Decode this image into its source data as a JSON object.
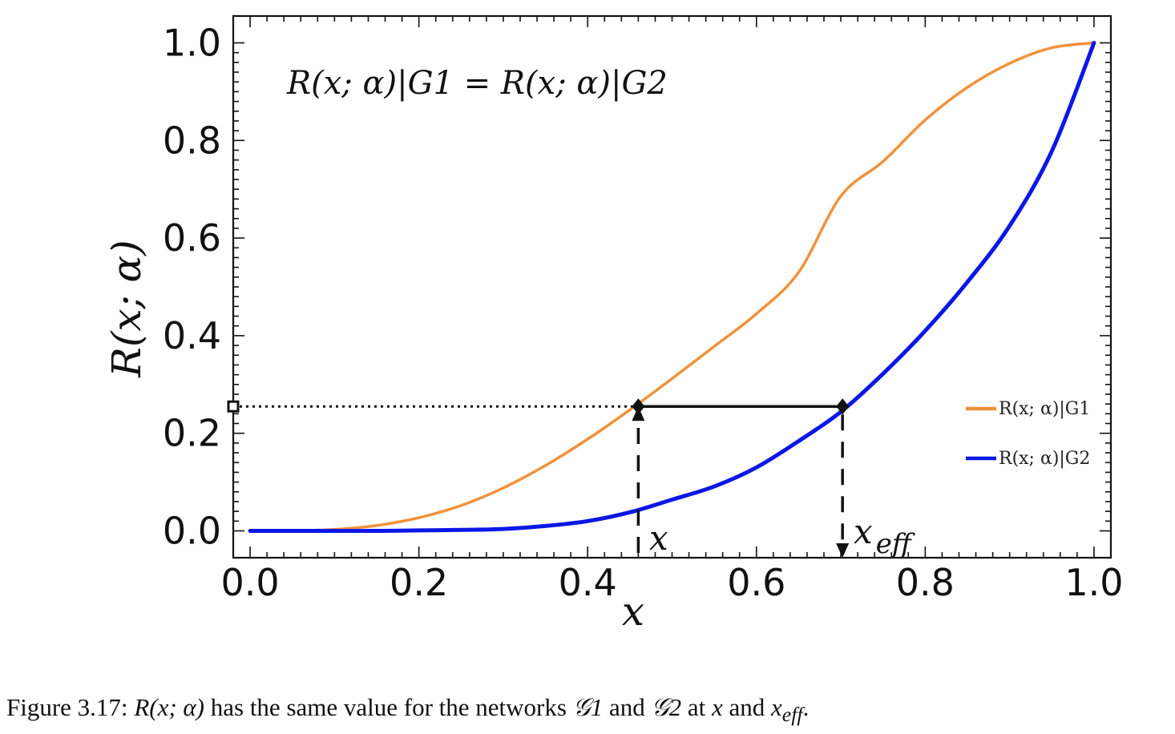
{
  "chart_data": {
    "type": "line",
    "title": "",
    "xlabel": "x",
    "ylabel": "R(x; α)",
    "xlim": [
      -0.02,
      1.02
    ],
    "ylim": [
      -0.055,
      1.055
    ],
    "xticks": [
      0.0,
      0.2,
      0.4,
      0.6,
      0.8,
      1.0
    ],
    "xtick_labels": [
      "0.0",
      "0.2",
      "0.4",
      "0.6",
      "0.8",
      "1.0"
    ],
    "yticks": [
      0.0,
      0.2,
      0.4,
      0.6,
      0.8,
      1.0
    ],
    "ytick_labels": [
      "0.0",
      "0.2",
      "0.4",
      "0.6",
      "0.8",
      "1.0"
    ],
    "grid": false,
    "frame": true,
    "annotation": "R(x; α)|G1 = R(x; α)|G2",
    "legend_position": "right",
    "series": [
      {
        "name": "R(x; α)|G1",
        "color": "#F0923B",
        "x": [
          0.0,
          0.05,
          0.1,
          0.15,
          0.2,
          0.25,
          0.3,
          0.35,
          0.4,
          0.45,
          0.5,
          0.55,
          0.6,
          0.65,
          0.7,
          0.75,
          0.8,
          0.85,
          0.9,
          0.95,
          1.0
        ],
        "y": [
          0.0,
          0.0,
          0.003,
          0.011,
          0.027,
          0.052,
          0.088,
          0.134,
          0.188,
          0.248,
          0.312,
          0.378,
          0.445,
          0.53,
          0.686,
          0.757,
          0.842,
          0.909,
          0.958,
          0.99,
          1.0
        ]
      },
      {
        "name": "R(x; α)|G2",
        "color": "#0A17E6",
        "x": [
          0.0,
          0.05,
          0.1,
          0.15,
          0.2,
          0.25,
          0.3,
          0.35,
          0.4,
          0.45,
          0.5,
          0.55,
          0.6,
          0.65,
          0.7,
          0.75,
          0.8,
          0.85,
          0.9,
          0.95,
          1.0
        ],
        "y": [
          0.0,
          0.0,
          0.0,
          0.0,
          0.001,
          0.002,
          0.004,
          0.01,
          0.02,
          0.038,
          0.064,
          0.091,
          0.13,
          0.184,
          0.244,
          0.322,
          0.41,
          0.51,
          0.625,
          0.778,
          1.0
        ]
      }
    ],
    "markers": {
      "level_y": 0.255,
      "x": 0.46,
      "x_eff": 0.702
    },
    "annotation_labels": {
      "x_label": "x",
      "x_eff_label": "x",
      "x_eff_subscript": "eff"
    }
  },
  "caption": {
    "prefix": "Figure 3.17:",
    "r_expr": "R(x; α)",
    "middle": "has the same value for the networks",
    "net1": "𝒢1",
    "and1": "and",
    "net2": "𝒢2",
    "at": "at",
    "x": "x",
    "and2": "and",
    "x_eff": "x",
    "x_eff_sub": "eff",
    "end": "."
  }
}
